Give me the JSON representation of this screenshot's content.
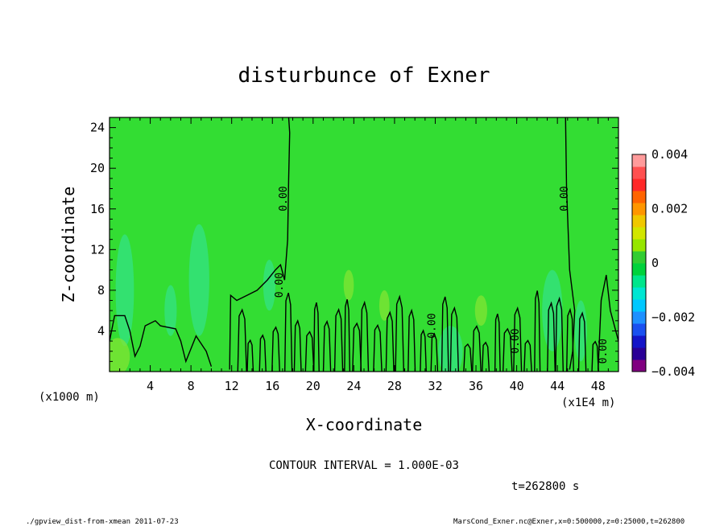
{
  "chart_data": {
    "type": "heatmap",
    "title": "disturbunce of Exner",
    "xlabel": "X-coordinate",
    "ylabel": "Z-coordinate",
    "x_unit_left": "(x1000 m)",
    "x_unit_right": "(x1E4 m)",
    "xlim": [
      0,
      50
    ],
    "ylim": [
      0,
      25
    ],
    "x_ticks": [
      4,
      8,
      12,
      16,
      20,
      24,
      28,
      32,
      36,
      40,
      44,
      48
    ],
    "y_ticks": [
      4,
      8,
      12,
      16,
      20,
      24
    ],
    "contour_interval_text": "CONTOUR INTERVAL = 1.000E-03",
    "time_text": "t=262800 s",
    "contour_labels": [
      {
        "text": "0.00",
        "x": 17.4,
        "y": 17
      },
      {
        "text": "0.00",
        "x": 17.0,
        "y": 8.5
      },
      {
        "text": "0.00",
        "x": 45.0,
        "y": 17
      },
      {
        "text": "0.00",
        "x": 32.0,
        "y": 4.5
      },
      {
        "text": "0.00",
        "x": 40.2,
        "y": 3
      },
      {
        "text": "0.00",
        "x": 48.8,
        "y": 2
      }
    ],
    "background_value": 0.0,
    "colorbar": {
      "ticks": [
        {
          "value": 0.004,
          "label": "0.004"
        },
        {
          "value": 0.002,
          "label": "0.002"
        },
        {
          "value": 0,
          "label": "0"
        },
        {
          "value": -0.002,
          "label": "−0.002"
        },
        {
          "value": -0.004,
          "label": "−0.004"
        }
      ],
      "range": [
        -0.004,
        0.004
      ],
      "colors": [
        "#800080",
        "#2a0096",
        "#1414c8",
        "#1a50f0",
        "#1e90ff",
        "#00c8ff",
        "#00e6d2",
        "#00e68c",
        "#00d23c",
        "#32cd32",
        "#96e600",
        "#d2e600",
        "#f0c800",
        "#ff9600",
        "#ff6400",
        "#ff2828",
        "#ff5050",
        "#ff9b9b"
      ]
    }
  },
  "footer": {
    "left": "./gpview_dist-from-xmean  2011-07-23",
    "right": "MarsCond_Exner.nc@Exner,x=0:500000,z=0:25000,t=262800"
  },
  "colors": {
    "field_background": "#33dd33",
    "slightly_negative": "#33e28a",
    "slightly_positive": "#88e633"
  }
}
